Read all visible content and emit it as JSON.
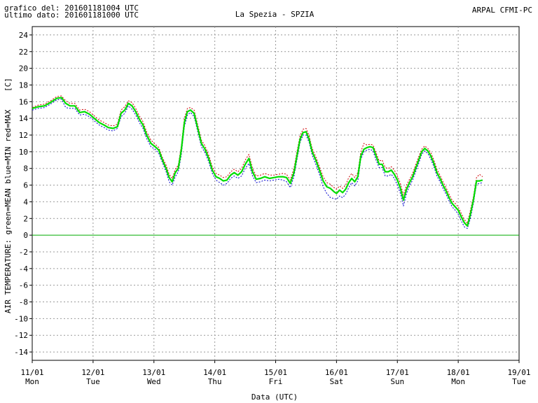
{
  "header": {
    "line1": "grafico del: 201601181004 UTC",
    "line2": "ultimo dato: 201601181000 UTC",
    "title": "La Spezia - SPZIA",
    "agency": "ARPAL CFMI-PC"
  },
  "chart_data": {
    "type": "line",
    "title": "La Spezia - SPZIA",
    "xlabel": "Data (UTC)",
    "ylabel": "AIR TEMPERATURE: green=MEAN  blue=MIN  red=MAX  [C]",
    "ylabel_left": "AIR TEMPERATURE: green=MEAN  blue=MIN  red=MAX",
    "ylabel_unit": "[C]",
    "xlim": [
      0,
      8
    ],
    "ylim": [
      -15,
      25
    ],
    "yticks": [
      -14,
      -12,
      -10,
      -8,
      -6,
      -4,
      -2,
      0,
      2,
      4,
      6,
      8,
      10,
      12,
      14,
      16,
      18,
      20,
      22,
      24
    ],
    "xticks": [
      {
        "date": "11/01",
        "day": "Mon"
      },
      {
        "date": "12/01",
        "day": "Tue"
      },
      {
        "date": "13/01",
        "day": "Wed"
      },
      {
        "date": "14/01",
        "day": "Thu"
      },
      {
        "date": "15/01",
        "day": "Fri"
      },
      {
        "date": "16/01",
        "day": "Sat"
      },
      {
        "date": "17/01",
        "day": "Sun"
      },
      {
        "date": "18/01",
        "day": "Mon"
      },
      {
        "date": "19/01",
        "day": "Tue"
      }
    ],
    "grid": true,
    "zero_line": true,
    "colors": {
      "mean": "#00dd00",
      "min": "#0000cc",
      "max": "#cc0000",
      "grid": "#999999",
      "zero": "#00aa00"
    },
    "series": [
      {
        "name": "MEAN",
        "x": [
          0.0,
          0.1,
          0.2,
          0.3,
          0.4,
          0.48,
          0.55,
          0.62,
          0.7,
          0.78,
          0.86,
          0.94,
          1.02,
          1.1,
          1.18,
          1.25,
          1.33,
          1.4,
          1.46,
          1.52,
          1.58,
          1.64,
          1.7,
          1.76,
          1.82,
          1.88,
          1.95,
          2.02,
          2.08,
          2.14,
          2.2,
          2.25,
          2.3,
          2.35,
          2.4,
          2.45,
          2.5,
          2.55,
          2.6,
          2.66,
          2.72,
          2.78,
          2.84,
          2.9,
          2.96,
          3.02,
          3.08,
          3.14,
          3.2,
          3.26,
          3.32,
          3.38,
          3.44,
          3.5,
          3.56,
          3.62,
          3.68,
          3.75,
          3.82,
          3.9,
          3.97,
          4.05,
          4.12,
          4.18,
          4.24,
          4.3,
          4.35,
          4.4,
          4.45,
          4.5,
          4.55,
          4.6,
          4.66,
          4.72,
          4.78,
          4.84,
          4.9,
          4.96,
          5.0,
          5.05,
          5.1,
          5.15,
          5.2,
          5.25,
          5.3,
          5.35,
          5.4,
          5.45,
          5.5,
          5.55,
          5.6,
          5.65,
          5.7,
          5.75,
          5.8,
          5.85,
          5.9,
          5.95,
          6.0,
          6.05,
          6.1,
          6.15,
          6.2,
          6.25,
          6.3,
          6.35,
          6.4,
          6.45,
          6.5,
          6.55,
          6.6,
          6.65,
          6.7,
          6.75,
          6.8,
          6.85,
          6.9,
          6.95,
          7.0,
          7.05,
          7.1,
          7.15,
          7.2,
          7.25,
          7.3,
          7.35,
          7.4
        ],
        "values": [
          15.2,
          15.4,
          15.5,
          15.9,
          16.4,
          16.5,
          15.8,
          15.5,
          15.5,
          14.7,
          14.8,
          14.5,
          14.0,
          13.5,
          13.2,
          12.9,
          12.8,
          13.0,
          14.6,
          15.0,
          15.8,
          15.5,
          14.8,
          13.9,
          13.2,
          12.0,
          11.0,
          10.6,
          10.2,
          9.0,
          8.0,
          6.9,
          6.4,
          7.5,
          8.0,
          10.2,
          13.5,
          14.8,
          15.0,
          14.6,
          12.8,
          11.0,
          10.3,
          9.2,
          7.8,
          7.0,
          6.8,
          6.5,
          6.6,
          7.2,
          7.5,
          7.2,
          7.6,
          8.5,
          9.2,
          7.6,
          6.7,
          6.8,
          7.0,
          6.8,
          6.9,
          7.0,
          7.0,
          6.9,
          6.2,
          7.5,
          9.5,
          11.5,
          12.3,
          12.4,
          11.5,
          10.0,
          9.0,
          7.8,
          6.5,
          5.8,
          5.6,
          5.2,
          5.0,
          5.4,
          5.1,
          5.5,
          6.3,
          6.8,
          6.4,
          7.0,
          9.5,
          10.3,
          10.5,
          10.6,
          10.5,
          9.5,
          8.5,
          8.5,
          7.6,
          7.6,
          7.8,
          7.3,
          6.6,
          5.6,
          4.2,
          5.5,
          6.3,
          7.0,
          8.0,
          9.0,
          10.0,
          10.4,
          10.1,
          9.5,
          8.6,
          7.5,
          6.8,
          6.0,
          5.3,
          4.5,
          3.8,
          3.4,
          3.0,
          2.2,
          1.5,
          1.1,
          2.5,
          4.2,
          6.5,
          6.5,
          6.6
        ]
      },
      {
        "name": "MIN",
        "x": [
          0.0,
          0.1,
          0.2,
          0.3,
          0.4,
          0.48,
          0.55,
          0.62,
          0.7,
          0.78,
          0.86,
          0.94,
          1.02,
          1.1,
          1.18,
          1.25,
          1.33,
          1.4,
          1.46,
          1.52,
          1.58,
          1.64,
          1.7,
          1.76,
          1.82,
          1.88,
          1.95,
          2.02,
          2.08,
          2.14,
          2.2,
          2.25,
          2.3,
          2.35,
          2.4,
          2.45,
          2.5,
          2.55,
          2.6,
          2.66,
          2.72,
          2.78,
          2.84,
          2.9,
          2.96,
          3.02,
          3.08,
          3.14,
          3.2,
          3.26,
          3.32,
          3.38,
          3.44,
          3.5,
          3.56,
          3.62,
          3.68,
          3.75,
          3.82,
          3.9,
          3.97,
          4.05,
          4.12,
          4.18,
          4.24,
          4.3,
          4.35,
          4.4,
          4.45,
          4.5,
          4.55,
          4.6,
          4.66,
          4.72,
          4.78,
          4.84,
          4.9,
          4.96,
          5.0,
          5.05,
          5.1,
          5.15,
          5.2,
          5.25,
          5.3,
          5.35,
          5.4,
          5.45,
          5.5,
          5.55,
          5.6,
          5.65,
          5.7,
          5.75,
          5.8,
          5.85,
          5.9,
          5.95,
          6.0,
          6.05,
          6.1,
          6.15,
          6.2,
          6.25,
          6.3,
          6.35,
          6.4,
          6.45,
          6.5,
          6.55,
          6.6,
          6.65,
          6.7,
          6.75,
          6.8,
          6.85,
          6.9,
          6.95,
          7.0,
          7.05,
          7.1,
          7.15,
          7.2,
          7.25,
          7.3,
          7.35,
          7.4
        ],
        "values": [
          15.0,
          15.2,
          15.3,
          15.7,
          16.2,
          16.3,
          15.3,
          15.2,
          15.2,
          14.4,
          14.5,
          14.2,
          13.7,
          13.2,
          12.9,
          12.6,
          12.5,
          12.8,
          14.2,
          14.6,
          15.5,
          15.1,
          14.4,
          13.5,
          12.8,
          11.6,
          10.6,
          10.3,
          9.8,
          8.7,
          7.6,
          6.4,
          6.0,
          7.0,
          7.6,
          9.6,
          13.0,
          14.4,
          14.7,
          14.2,
          12.4,
          10.6,
          9.9,
          8.8,
          7.4,
          6.6,
          6.3,
          6.0,
          6.2,
          6.8,
          7.1,
          6.8,
          7.1,
          8.0,
          8.6,
          7.1,
          6.3,
          6.4,
          6.6,
          6.5,
          6.6,
          6.7,
          6.6,
          6.4,
          5.7,
          7.0,
          9.0,
          11.1,
          12.0,
          12.0,
          11.1,
          9.6,
          8.5,
          7.3,
          5.8,
          5.0,
          4.5,
          4.4,
          4.3,
          4.7,
          4.5,
          4.9,
          5.7,
          6.3,
          5.9,
          6.5,
          9.1,
          10.0,
          10.2,
          10.3,
          10.1,
          9.0,
          8.1,
          8.1,
          7.1,
          7.1,
          7.3,
          6.8,
          6.0,
          5.0,
          3.5,
          5.0,
          5.9,
          6.6,
          7.6,
          8.6,
          9.7,
          10.1,
          9.8,
          9.1,
          8.2,
          7.1,
          6.4,
          5.6,
          4.9,
          4.1,
          3.4,
          3.0,
          2.5,
          1.7,
          1.0,
          0.8,
          2.0,
          3.8,
          6.1,
          6.2,
          6.3
        ]
      },
      {
        "name": "MAX",
        "x": [
          0.0,
          0.1,
          0.2,
          0.3,
          0.4,
          0.48,
          0.55,
          0.62,
          0.7,
          0.78,
          0.86,
          0.94,
          1.02,
          1.1,
          1.18,
          1.25,
          1.33,
          1.4,
          1.46,
          1.52,
          1.58,
          1.64,
          1.7,
          1.76,
          1.82,
          1.88,
          1.95,
          2.02,
          2.08,
          2.14,
          2.2,
          2.25,
          2.3,
          2.35,
          2.4,
          2.45,
          2.5,
          2.55,
          2.6,
          2.66,
          2.72,
          2.78,
          2.84,
          2.9,
          2.96,
          3.02,
          3.08,
          3.14,
          3.2,
          3.26,
          3.32,
          3.38,
          3.44,
          3.5,
          3.56,
          3.62,
          3.68,
          3.75,
          3.82,
          3.9,
          3.97,
          4.05,
          4.12,
          4.18,
          4.24,
          4.3,
          4.35,
          4.4,
          4.45,
          4.5,
          4.55,
          4.6,
          4.66,
          4.72,
          4.78,
          4.84,
          4.9,
          4.96,
          5.0,
          5.05,
          5.1,
          5.15,
          5.2,
          5.25,
          5.3,
          5.35,
          5.4,
          5.45,
          5.5,
          5.55,
          5.6,
          5.65,
          5.7,
          5.75,
          5.8,
          5.85,
          5.9,
          5.95,
          6.0,
          6.05,
          6.1,
          6.15,
          6.2,
          6.25,
          6.3,
          6.35,
          6.4,
          6.45,
          6.5,
          6.55,
          6.6,
          6.65,
          6.7,
          6.75,
          6.8,
          6.85,
          6.9,
          6.95,
          7.0,
          7.05,
          7.1,
          7.15,
          7.2,
          7.25,
          7.3,
          7.35,
          7.4
        ],
        "values": [
          15.3,
          15.6,
          15.7,
          16.1,
          16.6,
          16.7,
          16.1,
          15.8,
          15.8,
          15.0,
          15.1,
          14.8,
          14.3,
          13.8,
          13.5,
          13.2,
          13.1,
          13.3,
          15.0,
          15.4,
          16.1,
          15.9,
          15.2,
          14.3,
          13.6,
          12.4,
          11.4,
          10.9,
          10.5,
          9.3,
          8.4,
          7.3,
          6.8,
          7.9,
          8.4,
          10.7,
          14.0,
          15.2,
          15.3,
          15.0,
          13.2,
          11.4,
          10.7,
          9.6,
          8.2,
          7.4,
          7.2,
          6.9,
          7.0,
          7.6,
          7.9,
          7.6,
          8.0,
          9.0,
          9.7,
          8.0,
          7.1,
          7.2,
          7.4,
          7.2,
          7.2,
          7.3,
          7.4,
          7.3,
          6.6,
          8.0,
          10.0,
          11.9,
          12.7,
          12.8,
          11.9,
          10.4,
          9.4,
          8.2,
          7.0,
          6.3,
          6.1,
          5.7,
          5.5,
          5.9,
          5.6,
          6.0,
          6.9,
          7.4,
          6.9,
          7.5,
          10.0,
          11.0,
          10.8,
          10.9,
          10.8,
          9.9,
          8.9,
          9.0,
          8.1,
          8.0,
          8.2,
          7.8,
          7.1,
          6.2,
          4.8,
          6.0,
          6.7,
          7.4,
          8.4,
          9.4,
          10.3,
          10.7,
          10.4,
          9.9,
          9.0,
          7.9,
          7.2,
          6.4,
          5.7,
          4.9,
          4.2,
          3.8,
          3.4,
          2.6,
          1.9,
          1.4,
          3.0,
          4.6,
          6.9,
          7.3,
          7.0
        ]
      }
    ]
  }
}
